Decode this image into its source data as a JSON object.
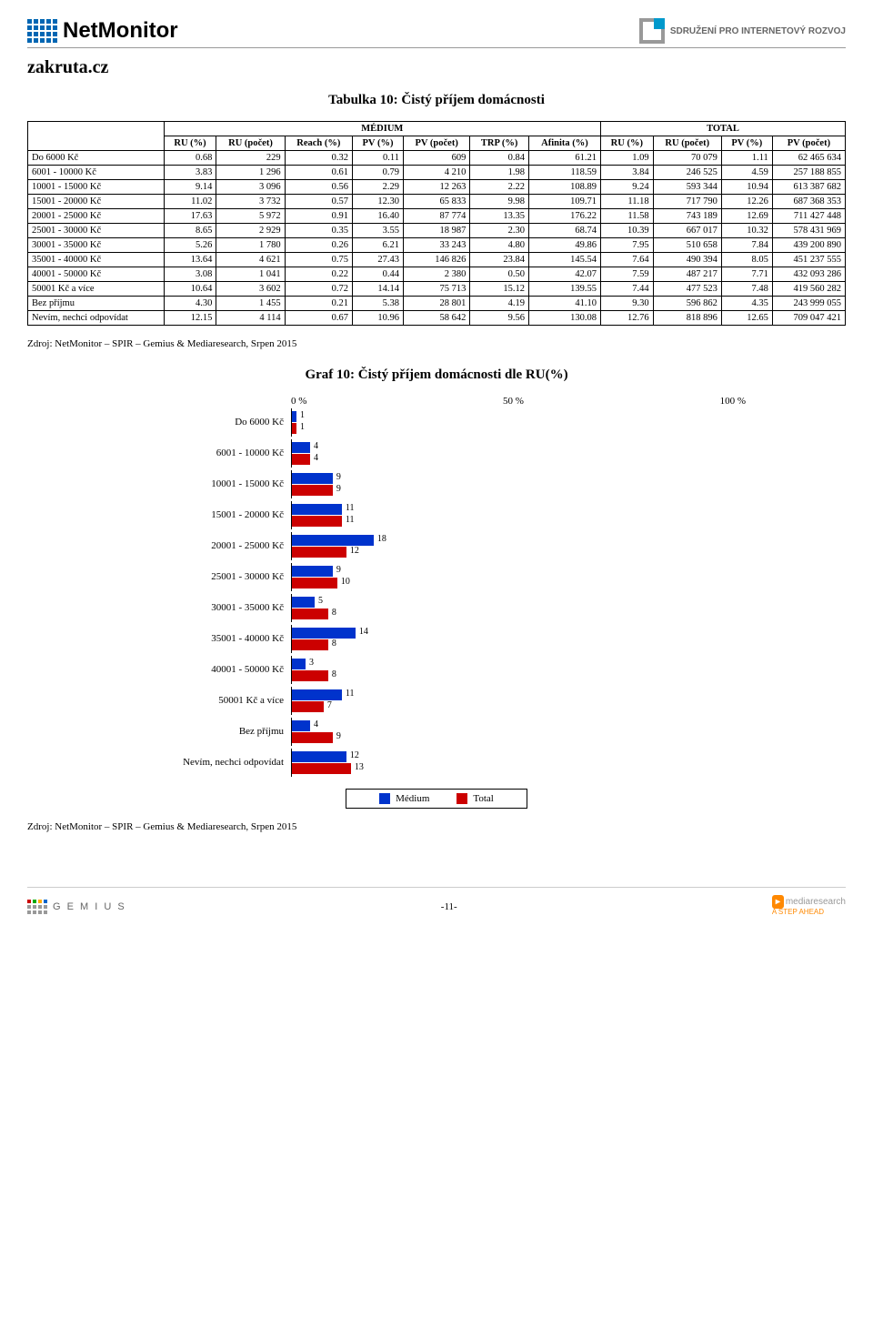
{
  "header": {
    "logo_text": "NetMonitor",
    "org_text": "SDRUŽENÍ PRO INTERNETOVÝ ROZVOJ"
  },
  "site_name": "zakruta.cz",
  "table_title": "Tabulka 10: Čistý příjem domácnosti",
  "columns": {
    "group_medium": "MÉDIUM",
    "group_total": "TOTAL",
    "ru_pct": "RU (%)",
    "ru_count": "RU (počet)",
    "reach_pct": "Reach (%)",
    "pv_pct": "PV (%)",
    "pv_count": "PV (počet)",
    "trp_pct": "TRP (%)",
    "afinita_pct": "Afinita (%)",
    "t_ru_pct": "RU (%)",
    "t_ru_count": "RU (počet)",
    "t_pv_pct": "PV (%)",
    "t_pv_count": "PV (počet)"
  },
  "rows": [
    {
      "label": "Do 6000 Kč",
      "ru_pct": "0.68",
      "ru_count": "229",
      "reach": "0.32",
      "pv_pct": "0.11",
      "pv_count": "609",
      "trp": "0.84",
      "af": "61.21",
      "tru_pct": "1.09",
      "tru_count": "70 079",
      "tpv_pct": "1.11",
      "tpv_count": "62 465 634"
    },
    {
      "label": "6001 - 10000 Kč",
      "ru_pct": "3.83",
      "ru_count": "1 296",
      "reach": "0.61",
      "pv_pct": "0.79",
      "pv_count": "4 210",
      "trp": "1.98",
      "af": "118.59",
      "tru_pct": "3.84",
      "tru_count": "246 525",
      "tpv_pct": "4.59",
      "tpv_count": "257 188 855"
    },
    {
      "label": "10001 - 15000 Kč",
      "ru_pct": "9.14",
      "ru_count": "3 096",
      "reach": "0.56",
      "pv_pct": "2.29",
      "pv_count": "12 263",
      "trp": "2.22",
      "af": "108.89",
      "tru_pct": "9.24",
      "tru_count": "593 344",
      "tpv_pct": "10.94",
      "tpv_count": "613 387 682"
    },
    {
      "label": "15001 - 20000 Kč",
      "ru_pct": "11.02",
      "ru_count": "3 732",
      "reach": "0.57",
      "pv_pct": "12.30",
      "pv_count": "65 833",
      "trp": "9.98",
      "af": "109.71",
      "tru_pct": "11.18",
      "tru_count": "717 790",
      "tpv_pct": "12.26",
      "tpv_count": "687 368 353"
    },
    {
      "label": "20001 - 25000 Kč",
      "ru_pct": "17.63",
      "ru_count": "5 972",
      "reach": "0.91",
      "pv_pct": "16.40",
      "pv_count": "87 774",
      "trp": "13.35",
      "af": "176.22",
      "tru_pct": "11.58",
      "tru_count": "743 189",
      "tpv_pct": "12.69",
      "tpv_count": "711 427 448"
    },
    {
      "label": "25001 - 30000 Kč",
      "ru_pct": "8.65",
      "ru_count": "2 929",
      "reach": "0.35",
      "pv_pct": "3.55",
      "pv_count": "18 987",
      "trp": "2.30",
      "af": "68.74",
      "tru_pct": "10.39",
      "tru_count": "667 017",
      "tpv_pct": "10.32",
      "tpv_count": "578 431 969"
    },
    {
      "label": "30001 - 35000 Kč",
      "ru_pct": "5.26",
      "ru_count": "1 780",
      "reach": "0.26",
      "pv_pct": "6.21",
      "pv_count": "33 243",
      "trp": "4.80",
      "af": "49.86",
      "tru_pct": "7.95",
      "tru_count": "510 658",
      "tpv_pct": "7.84",
      "tpv_count": "439 200 890"
    },
    {
      "label": "35001 - 40000 Kč",
      "ru_pct": "13.64",
      "ru_count": "4 621",
      "reach": "0.75",
      "pv_pct": "27.43",
      "pv_count": "146 826",
      "trp": "23.84",
      "af": "145.54",
      "tru_pct": "7.64",
      "tru_count": "490 394",
      "tpv_pct": "8.05",
      "tpv_count": "451 237 555"
    },
    {
      "label": "40001 - 50000 Kč",
      "ru_pct": "3.08",
      "ru_count": "1 041",
      "reach": "0.22",
      "pv_pct": "0.44",
      "pv_count": "2 380",
      "trp": "0.50",
      "af": "42.07",
      "tru_pct": "7.59",
      "tru_count": "487 217",
      "tpv_pct": "7.71",
      "tpv_count": "432 093 286"
    },
    {
      "label": "50001 Kč a více",
      "ru_pct": "10.64",
      "ru_count": "3 602",
      "reach": "0.72",
      "pv_pct": "14.14",
      "pv_count": "75 713",
      "trp": "15.12",
      "af": "139.55",
      "tru_pct": "7.44",
      "tru_count": "477 523",
      "tpv_pct": "7.48",
      "tpv_count": "419 560 282"
    },
    {
      "label": "Bez příjmu",
      "ru_pct": "4.30",
      "ru_count": "1 455",
      "reach": "0.21",
      "pv_pct": "5.38",
      "pv_count": "28 801",
      "trp": "4.19",
      "af": "41.10",
      "tru_pct": "9.30",
      "tru_count": "596 862",
      "tpv_pct": "4.35",
      "tpv_count": "243 999 055"
    },
    {
      "label": "Nevím, nechci odpovídat",
      "ru_pct": "12.15",
      "ru_count": "4 114",
      "reach": "0.67",
      "pv_pct": "10.96",
      "pv_count": "58 642",
      "trp": "9.56",
      "af": "130.08",
      "tru_pct": "12.76",
      "tru_count": "818 896",
      "tpv_pct": "12.65",
      "tpv_count": "709 047 421"
    }
  ],
  "source_note": "Zdroj: NetMonitor – SPIR – Gemius & Mediaresearch, Srpen 2015",
  "chart": {
    "title": "Graf 10: Čistý příjem domácnosti dle RU(%)",
    "axis": {
      "min": "0 %",
      "mid": "50 %",
      "max": "100 %"
    },
    "max_value": 100,
    "bar_colors": {
      "medium": "#0033cc",
      "total": "#cc0000"
    },
    "categories": [
      {
        "label": "Do 6000 Kč",
        "medium": 1,
        "total": 1
      },
      {
        "label": "6001 - 10000 Kč",
        "medium": 4,
        "total": 4
      },
      {
        "label": "10001 - 15000 Kč",
        "medium": 9,
        "total": 9
      },
      {
        "label": "15001 - 20000 Kč",
        "medium": 11,
        "total": 11
      },
      {
        "label": "20001 - 25000 Kč",
        "medium": 18,
        "total": 12
      },
      {
        "label": "25001 - 30000 Kč",
        "medium": 9,
        "total": 10
      },
      {
        "label": "30001 - 35000 Kč",
        "medium": 5,
        "total": 8
      },
      {
        "label": "35001 - 40000 Kč",
        "medium": 14,
        "total": 8
      },
      {
        "label": "40001 - 50000 Kč",
        "medium": 3,
        "total": 8
      },
      {
        "label": "50001 Kč a více",
        "medium": 11,
        "total": 7
      },
      {
        "label": "Bez příjmu",
        "medium": 4,
        "total": 9
      },
      {
        "label": "Nevím, nechci odpovídat",
        "medium": 12,
        "total": 13
      }
    ],
    "legend": {
      "medium": "Médium",
      "total": "Total"
    }
  },
  "footer": {
    "left": "G E M I U S",
    "page": "-11-",
    "right_brand": "mediaresearch",
    "right_tag": "A STEP AHEAD"
  }
}
